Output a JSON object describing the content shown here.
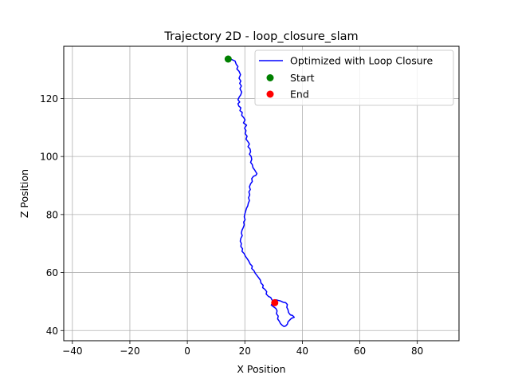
{
  "chart_data": {
    "type": "line",
    "title": "Trajectory 2D - loop_closure_slam",
    "xlabel": "X Position",
    "ylabel": "Z Position",
    "xlim": [
      -43,
      94.5
    ],
    "ylim": [
      36.5,
      138
    ],
    "x_ticks": [
      -40,
      -20,
      0,
      20,
      40,
      60,
      80
    ],
    "y_ticks": [
      40,
      60,
      80,
      100,
      120
    ],
    "grid": true,
    "legend_position": "top-right",
    "series": [
      {
        "name": "Optimized with Loop Closure",
        "color": "#0000ff",
        "points": [
          [
            14.2,
            133.6
          ],
          [
            15.5,
            133.4
          ],
          [
            16.6,
            132.9
          ],
          [
            17.0,
            131.8
          ],
          [
            17.6,
            131.0
          ],
          [
            17.2,
            130.2
          ],
          [
            18.0,
            129.4
          ],
          [
            18.5,
            128.2
          ],
          [
            18.0,
            127.0
          ],
          [
            18.6,
            126.0
          ],
          [
            18.2,
            125.2
          ],
          [
            18.8,
            124.3
          ],
          [
            18.3,
            123.4
          ],
          [
            18.9,
            122.2
          ],
          [
            18.6,
            121.3
          ],
          [
            18.0,
            120.4
          ],
          [
            17.6,
            119.6
          ],
          [
            18.2,
            118.8
          ],
          [
            17.6,
            118.2
          ],
          [
            17.9,
            117.4
          ],
          [
            18.6,
            116.8
          ],
          [
            18.3,
            115.8
          ],
          [
            19.1,
            115.2
          ],
          [
            18.9,
            114.2
          ],
          [
            19.6,
            113.4
          ],
          [
            20.1,
            112.6
          ],
          [
            19.5,
            111.6
          ],
          [
            20.6,
            110.8
          ],
          [
            19.9,
            109.8
          ],
          [
            20.4,
            108.9
          ],
          [
            20.1,
            107.9
          ],
          [
            20.8,
            107.0
          ],
          [
            20.4,
            106.0
          ],
          [
            21.0,
            105.2
          ],
          [
            21.6,
            104.3
          ],
          [
            21.1,
            103.4
          ],
          [
            21.8,
            102.6
          ],
          [
            22.0,
            101.6
          ],
          [
            21.6,
            100.8
          ],
          [
            22.2,
            100.0
          ],
          [
            22.4,
            99.0
          ],
          [
            22.0,
            98.0
          ],
          [
            22.6,
            97.2
          ],
          [
            22.8,
            96.2
          ],
          [
            23.4,
            95.4
          ],
          [
            23.8,
            94.7
          ],
          [
            24.2,
            94.1
          ],
          [
            23.8,
            93.5
          ],
          [
            23.0,
            93.2
          ],
          [
            22.4,
            92.4
          ],
          [
            22.6,
            91.4
          ],
          [
            22.0,
            90.6
          ],
          [
            21.6,
            89.6
          ],
          [
            21.9,
            88.6
          ],
          [
            21.4,
            87.8
          ],
          [
            21.7,
            86.8
          ],
          [
            21.3,
            85.8
          ],
          [
            21.6,
            84.8
          ],
          [
            21.2,
            83.9
          ],
          [
            21.0,
            83.0
          ],
          [
            20.6,
            82.2
          ],
          [
            20.3,
            81.2
          ],
          [
            20.0,
            80.2
          ],
          [
            19.8,
            79.2
          ],
          [
            20.1,
            78.2
          ],
          [
            19.6,
            77.4
          ],
          [
            19.8,
            76.4
          ],
          [
            19.4,
            75.4
          ],
          [
            19.0,
            74.6
          ],
          [
            18.8,
            73.6
          ],
          [
            19.1,
            72.7
          ],
          [
            18.6,
            71.8
          ],
          [
            18.4,
            70.8
          ],
          [
            18.8,
            70.0
          ],
          [
            18.6,
            69.0
          ],
          [
            19.2,
            68.2
          ],
          [
            19.0,
            67.3
          ],
          [
            19.8,
            66.5
          ],
          [
            20.2,
            65.6
          ],
          [
            20.8,
            64.8
          ],
          [
            21.4,
            63.9
          ],
          [
            21.8,
            63.0
          ],
          [
            22.6,
            62.2
          ],
          [
            22.4,
            61.4
          ],
          [
            23.2,
            60.6
          ],
          [
            23.6,
            59.8
          ],
          [
            24.2,
            59.0
          ],
          [
            24.8,
            58.2
          ],
          [
            25.4,
            57.4
          ],
          [
            25.6,
            56.4
          ],
          [
            26.4,
            55.6
          ],
          [
            26.2,
            54.8
          ],
          [
            27.0,
            54.2
          ],
          [
            27.6,
            53.4
          ],
          [
            27.4,
            52.6
          ],
          [
            28.2,
            51.8
          ],
          [
            29.0,
            51.4
          ],
          [
            29.4,
            50.6
          ],
          [
            30.0,
            50.0
          ],
          [
            29.6,
            49.4
          ],
          [
            29.2,
            48.8
          ],
          [
            30.0,
            48.2
          ],
          [
            30.8,
            47.6
          ],
          [
            31.2,
            46.8
          ],
          [
            31.0,
            45.8
          ],
          [
            31.6,
            45.0
          ],
          [
            31.4,
            44.0
          ],
          [
            32.0,
            43.2
          ],
          [
            32.4,
            42.4
          ],
          [
            33.0,
            41.8
          ],
          [
            33.6,
            41.4
          ],
          [
            34.2,
            41.6
          ],
          [
            34.8,
            42.2
          ],
          [
            35.0,
            43.0
          ],
          [
            35.6,
            43.6
          ],
          [
            36.2,
            44.2
          ],
          [
            37.2,
            44.6
          ],
          [
            36.6,
            45.2
          ],
          [
            35.8,
            45.4
          ],
          [
            35.2,
            46.2
          ],
          [
            35.0,
            47.2
          ],
          [
            34.6,
            48.0
          ],
          [
            34.8,
            49.0
          ],
          [
            34.2,
            49.6
          ],
          [
            33.2,
            49.8
          ],
          [
            32.4,
            50.2
          ],
          [
            31.6,
            50.4
          ],
          [
            30.8,
            50.6
          ],
          [
            30.2,
            50.4
          ],
          [
            29.6,
            49.8
          ]
        ]
      }
    ],
    "markers": [
      {
        "name": "Start",
        "color": "#008000",
        "x": 14.2,
        "y": 133.6
      },
      {
        "name": "End",
        "color": "#ff0000",
        "x": 30.4,
        "y": 49.6
      }
    ]
  }
}
